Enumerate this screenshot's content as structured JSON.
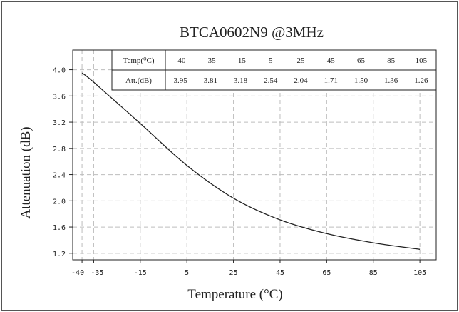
{
  "chart_data": {
    "type": "line",
    "title": "BTCA0602N9 @3MHz",
    "xlabel": "Temperature (°C)",
    "ylabel": "Attenuation (dB)",
    "xlim": [
      -44,
      112
    ],
    "ylim": [
      1.1,
      4.3
    ],
    "x_ticks": [
      -40,
      -35,
      -15,
      5,
      25,
      45,
      65,
      85,
      105
    ],
    "x_tick_labels": [
      "-40",
      "-35",
      "-15",
      "5",
      "25",
      "45",
      "65",
      "85",
      "105"
    ],
    "y_ticks": [
      1.2,
      1.6,
      2.0,
      2.4,
      2.8,
      3.2,
      3.6,
      4.0
    ],
    "y_tick_labels": [
      "1.2",
      "1.6",
      "2.0",
      "2.4",
      "2.8",
      "3.2",
      "3.6",
      "4.0"
    ],
    "grid": true,
    "series": [
      {
        "x": [
          -40,
          -35,
          -15,
          5,
          25,
          45,
          65,
          85,
          105
        ],
        "y": [
          3.95,
          3.81,
          3.18,
          2.54,
          2.04,
          1.71,
          1.5,
          1.36,
          1.26
        ]
      }
    ],
    "table": {
      "header_row_label": "Temp(⁰C)",
      "value_row_label": "Att.(dB)",
      "temps": [
        "-40",
        "-35",
        "-15",
        "5",
        "25",
        "45",
        "65",
        "85",
        "105"
      ],
      "atts": [
        "3.95",
        "3.81",
        "3.18",
        "2.54",
        "2.04",
        "1.71",
        "1.50",
        "1.36",
        "1.26"
      ]
    }
  }
}
